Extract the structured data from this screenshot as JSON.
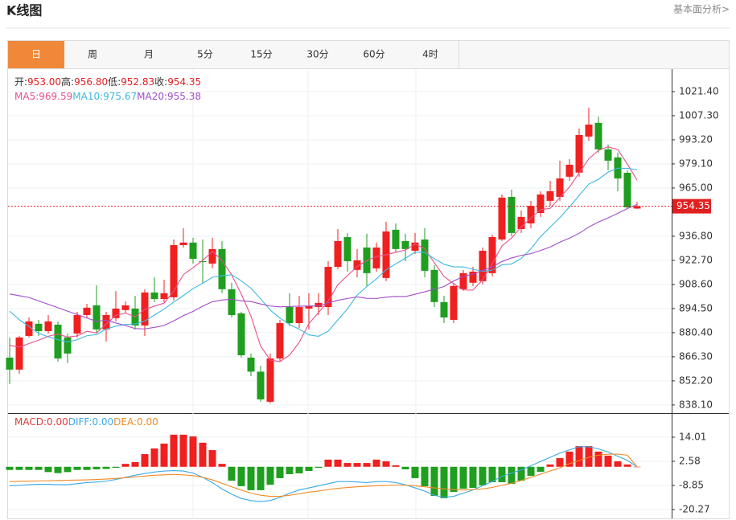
{
  "header": {
    "title": "K线图",
    "link": "基本面分析>"
  },
  "tabs": [
    "日",
    "周",
    "月",
    "5分",
    "15分",
    "30分",
    "60分",
    "4时"
  ],
  "active_tab": "日",
  "chart_data": [
    {
      "type": "candlestick",
      "up_color": "#f02020",
      "down_color": "#1f9e1f",
      "info": [
        {
          "name": "开:",
          "value_label": "953.00"
        },
        {
          "name": "高:",
          "value_label": "956.80"
        },
        {
          "name": "低:",
          "value_label": "952.83"
        },
        {
          "name": "收:",
          "value_label": "954.35"
        }
      ],
      "open": [
        865.8,
        858.8,
        878.5,
        885.6,
        881.3,
        885.1,
        877.6,
        879.9,
        890.7,
        896.4,
        882.3,
        888.9,
        893.6,
        894.5,
        884.6,
        903.9,
        900.1,
        901.1,
        931.6,
        933.1,
        922.2,
        920.8,
        929.3,
        905.8,
        891.7,
        865.8,
        857.6,
        840.0,
        865.3,
        895.4,
        886.0,
        894.5,
        895.4,
        895.4,
        918.9,
        936.3,
        917.1,
        930.2,
        918.0,
        912.4,
        940.6,
        934.0,
        928.3,
        934.9,
        917.1,
        898.3,
        887.9,
        905.8,
        909.6,
        910.5,
        915.2,
        934.9,
        959.8,
        941.0,
        944.3,
        950.4,
        957.5,
        959.8,
        971.6,
        974.0,
        995.1,
        1003.1,
        987.6,
        982.9,
        973.9,
        953.0
      ],
      "high": [
        877.6,
        878.6,
        889.3,
        887.9,
        890.7,
        887.0,
        879.9,
        892.6,
        897.3,
        908.1,
        892.6,
        904.7,
        898.7,
        902.0,
        905.8,
        912.8,
        911.4,
        934.9,
        941.5,
        935.9,
        934.9,
        935.9,
        934.0,
        909.6,
        892.6,
        868.2,
        861.1,
        868.2,
        887.9,
        903.5,
        902.0,
        903.5,
        903.5,
        922.2,
        941.0,
        938.7,
        929.3,
        938.3,
        933.1,
        945.3,
        944.3,
        938.3,
        938.7,
        941.5,
        919.9,
        902.0,
        909.6,
        917.1,
        918.9,
        930.2,
        937.7,
        961.2,
        964.1,
        951.8,
        957.5,
        963.1,
        969.2,
        981.0,
        981.9,
        999.8,
        1012.0,
        1006.8,
        990.4,
        985.7,
        975.3,
        956.8
      ],
      "low": [
        850.3,
        856.4,
        877.6,
        878.5,
        879.9,
        863.5,
        862.6,
        877.6,
        888.9,
        879.9,
        875.2,
        887.0,
        891.7,
        882.3,
        878.5,
        898.3,
        898.3,
        899.2,
        930.2,
        920.8,
        909.6,
        918.0,
        903.5,
        889.3,
        865.8,
        855.0,
        840.0,
        839.0,
        863.5,
        884.2,
        883.2,
        882.3,
        890.7,
        890.7,
        917.5,
        916.1,
        912.8,
        907.7,
        916.1,
        910.5,
        927.4,
        922.2,
        926.5,
        912.8,
        895.4,
        886.0,
        886.0,
        904.9,
        907.7,
        908.6,
        913.3,
        934.0,
        936.8,
        938.7,
        941.5,
        948.1,
        954.6,
        957.5,
        969.2,
        971.6,
        992.7,
        985.7,
        975.3,
        963.1,
        952.8,
        952.83
      ],
      "close": [
        858.8,
        877.6,
        887.0,
        881.3,
        887.0,
        865.3,
        868.2,
        890.7,
        895.0,
        882.3,
        890.7,
        894.5,
        896.4,
        884.6,
        903.9,
        900.1,
        903.5,
        931.6,
        933.1,
        923.6,
        921.8,
        929.3,
        905.8,
        890.7,
        867.2,
        857.6,
        841.4,
        865.3,
        886.0,
        886.0,
        895.4,
        895.9,
        897.8,
        918.9,
        934.0,
        922.2,
        922.7,
        915.2,
        930.2,
        939.6,
        929.3,
        929.3,
        933.1,
        916.6,
        898.3,
        889.3,
        907.7,
        915.2,
        916.1,
        928.3,
        936.3,
        959.4,
        938.7,
        948.1,
        954.6,
        961.2,
        963.1,
        970.6,
        978.6,
        996.0,
        1002.1,
        987.6,
        981.0,
        970.6,
        953.7,
        954.35
      ],
      "series": [
        {
          "name": "MA5:",
          "color": "#e8508c",
          "value_label": "969.59",
          "values": [
            873,
            872,
            874,
            876,
            878.3,
            879.6,
            877.8,
            878.5,
            881.2,
            880.3,
            885.4,
            890.6,
            891.8,
            889.7,
            894.0,
            895.9,
            897.7,
            904.7,
            914.4,
            918.4,
            922.7,
            927.9,
            922.7,
            914.2,
            903.0,
            890.1,
            872.5,
            864.4,
            863.5,
            867.3,
            874.8,
            885.7,
            892.2,
            898.8,
            908.4,
            913.8,
            919.1,
            922.6,
            924.9,
            926.0,
            927.4,
            928.7,
            932.3,
            929.6,
            921.3,
            913.3,
            909.0,
            905.4,
            905.3,
            911.3,
            920.7,
            931.1,
            935.8,
            942.2,
            947.4,
            952.4,
            953.1,
            959.5,
            965.6,
            973.9,
            982.1,
            987.0,
            989.1,
            987.5,
            979.0,
            969.59
          ]
        },
        {
          "name": "MA10:",
          "color": "#3cb8e0",
          "value_label": "975.67",
          "values": [
            893,
            888,
            884,
            880,
            878,
            876.3,
            874.9,
            876.3,
            878.6,
            879.3,
            882.5,
            884.2,
            885.2,
            885.5,
            887.2,
            890.7,
            894.2,
            898.3,
            902.1,
            906.2,
            909.3,
            912.8,
            913.7,
            914.3,
            910.7,
            906.4,
            900.2,
            893.6,
            888.9,
            885.2,
            882.5,
            879.1,
            878.3,
            881.2,
            887.9,
            894.3,
            902.4,
            907.4,
            911.9,
            917.2,
            920.6,
            923.9,
            927.5,
            927.3,
            923.7,
            920.4,
            918.9,
            918.9,
            917.5,
            916.3,
            917.0,
            920.1,
            920.6,
            923.8,
            929.4,
            936.6,
            942.1,
            947.7,
            953.9,
            960.7,
            967.3,
            970.1,
            974.3,
            976.6,
            976.5,
            975.67
          ]
        },
        {
          "name": "MA20:",
          "color": "#a04cc8",
          "value_label": "955.38",
          "values": [
            903,
            902,
            901,
            899,
            897,
            895,
            893,
            891,
            889,
            887,
            887.8,
            886.1,
            884.6,
            882.8,
            882.6,
            883.5,
            884.6,
            887.3,
            890.4,
            892.8,
            895.9,
            898.5,
            899.5,
            899.9,
            899.0,
            898.6,
            897.2,
            896.0,
            895.5,
            895.7,
            895.9,
            896.0,
            896.0,
            897.8,
            899.3,
            900.4,
            901.3,
            900.5,
            900.4,
            901.2,
            901.6,
            901.5,
            902.9,
            904.3,
            905.8,
            907.4,
            910.7,
            913.2,
            914.7,
            916.8,
            918.8,
            922.0,
            924.1,
            925.6,
            926.6,
            928.5,
            930.5,
            933.3,
            935.7,
            938.5,
            942.2,
            945.1,
            947.5,
            950.2,
            953.0,
            955.38
          ]
        }
      ],
      "price_line": {
        "value": 954.35,
        "label": "954.35",
        "color": "#e02020"
      },
      "ylim": [
        834.3,
        1033.6
      ],
      "yticks": [
        {
          "value": 838.1,
          "label": "838.10"
        },
        {
          "value": 852.2,
          "label": "852.20"
        },
        {
          "value": 866.3,
          "label": "866.30"
        },
        {
          "value": 880.4,
          "label": "880.40"
        },
        {
          "value": 894.5,
          "label": "894.50"
        },
        {
          "value": 908.6,
          "label": "908.60"
        },
        {
          "value": 922.7,
          "label": "922.70"
        },
        {
          "value": 936.8,
          "label": "936.80"
        },
        {
          "value": 965,
          "label": "965.00"
        },
        {
          "value": 979.1,
          "label": "979.10"
        },
        {
          "value": 993.2,
          "label": "993.20"
        },
        {
          "value": 1007.3,
          "label": "1007.30"
        },
        {
          "value": 1021.4,
          "label": "1021.40"
        }
      ],
      "grid": true
    },
    {
      "type": "macd",
      "bars": {
        "name": "MACD:",
        "color": "#e03a3a",
        "value_label": "0.00",
        "values": [
          -1.5,
          -1.5,
          -1.5,
          -1.5,
          -2.5,
          -3.0,
          -2.5,
          -1.5,
          -1.5,
          -1.2,
          -1.0,
          -0.5,
          1.4,
          2.2,
          6.0,
          8.7,
          11.0,
          15.2,
          15.2,
          14.4,
          11.4,
          7.9,
          1.4,
          -6.6,
          -9.2,
          -11.1,
          -11.1,
          -8.5,
          -5.4,
          -3.5,
          -3.1,
          -2.0,
          -0.5,
          3.4,
          3.4,
          1.8,
          1.8,
          1.8,
          3.4,
          2.6,
          0.7,
          -1.2,
          -5.4,
          -9.2,
          -13.8,
          -14.9,
          -11.9,
          -10.4,
          -10.0,
          -8.8,
          -7.3,
          -7.3,
          -8.1,
          -6.6,
          -4.3,
          -2.4,
          1.1,
          4.1,
          7.2,
          9.8,
          9.8,
          7.2,
          5.3,
          2.6,
          1.1,
          0.0
        ]
      },
      "series": [
        {
          "name": "DIFF:",
          "color": "#3aaae8",
          "value_label": "0.00",
          "values": [
            -9.0,
            -8.8,
            -8.5,
            -8.3,
            -8.3,
            -8.5,
            -8.5,
            -8.0,
            -7.5,
            -7.2,
            -6.8,
            -6.0,
            -5.0,
            -4.0,
            -3.2,
            -2.5,
            -2.0,
            -1.8,
            -2.0,
            -3.0,
            -5.0,
            -7.5,
            -10.5,
            -13.0,
            -15.0,
            -16.0,
            -16.5,
            -16.0,
            -14.5,
            -12.5,
            -11.0,
            -10.0,
            -9.0,
            -8.0,
            -7.0,
            -7.0,
            -7.2,
            -7.5,
            -7.0,
            -7.0,
            -7.5,
            -8.5,
            -10.0,
            -11.5,
            -13.5,
            -14.5,
            -14.0,
            -12.5,
            -11.0,
            -9.0,
            -7.0,
            -4.5,
            -3.0,
            -1.5,
            0.5,
            2.5,
            4.5,
            6.5,
            8.0,
            9.5,
            9.5,
            8.5,
            7.0,
            5.0,
            3.0,
            0.0
          ]
        },
        {
          "name": "DEA:",
          "color": "#f08a24",
          "value_label": "0.00",
          "values": [
            -7.0,
            -6.9,
            -6.8,
            -6.7,
            -6.6,
            -6.5,
            -6.4,
            -6.3,
            -6.2,
            -6.0,
            -5.8,
            -5.5,
            -5.2,
            -4.8,
            -4.4,
            -4.0,
            -3.8,
            -3.6,
            -3.8,
            -4.2,
            -5.0,
            -6.2,
            -7.8,
            -9.5,
            -11.0,
            -12.5,
            -13.5,
            -14.0,
            -14.0,
            -13.5,
            -12.8,
            -12.0,
            -11.5,
            -10.8,
            -10.2,
            -9.8,
            -9.5,
            -9.2,
            -9.0,
            -8.8,
            -8.7,
            -8.7,
            -9.0,
            -9.5,
            -10.0,
            -10.5,
            -10.8,
            -11.0,
            -10.8,
            -10.5,
            -9.8,
            -8.8,
            -7.8,
            -6.5,
            -5.0,
            -3.5,
            -2.0,
            -0.5,
            1.5,
            3.0,
            4.5,
            5.5,
            6.0,
            6.0,
            5.5,
            0.0
          ]
        }
      ],
      "ylim": [
        -24.46,
        24.68
      ],
      "yticks": [
        14.01,
        2.58,
        -8.85,
        -20.27
      ]
    }
  ]
}
